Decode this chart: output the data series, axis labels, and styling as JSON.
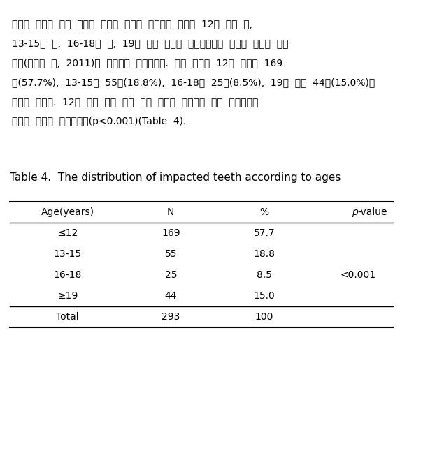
{
  "title": "Table 4.  The distribution of impacted teeth according to ages",
  "paragraph": "영구치  매복을  가진  연령별  환자의  분포를  연구하기  위하여  12세  이하  군,\n13-15세  군,  16-18세  군,  19세  이상  군으로  분류하였으며  연령의  기준은  선행\n논문(문철현  등,  2011)을  참고하여  결정하였다.  연령  분포는  12세  이하가  169\n명(57.7%),  13-15세  55명(18.8%),  16-18세  25명(8.5%),  19세  이상  44명(15.0%)의\n분포를  보였다.  12세  이하  군이  가장  높은  분포를  보였으며  이는  통계적으로\n유의한  차이를  보여주었다(p<0.001)(Table  4).",
  "col_headers": [
    "Age(years)",
    "N",
    "%",
    "p-value"
  ],
  "rows": [
    [
      "≤12",
      "169",
      "57.7",
      ""
    ],
    [
      "13-15",
      "55",
      "18.8",
      ""
    ],
    [
      "16-18",
      "25",
      "8.5",
      "<0.001"
    ],
    [
      "≥19",
      "44",
      "15.0",
      ""
    ],
    [
      "Total",
      "293",
      "100",
      ""
    ]
  ],
  "bg_color": "#ffffff",
  "text_color": "#000000",
  "font_size": 10,
  "title_font_size": 11
}
